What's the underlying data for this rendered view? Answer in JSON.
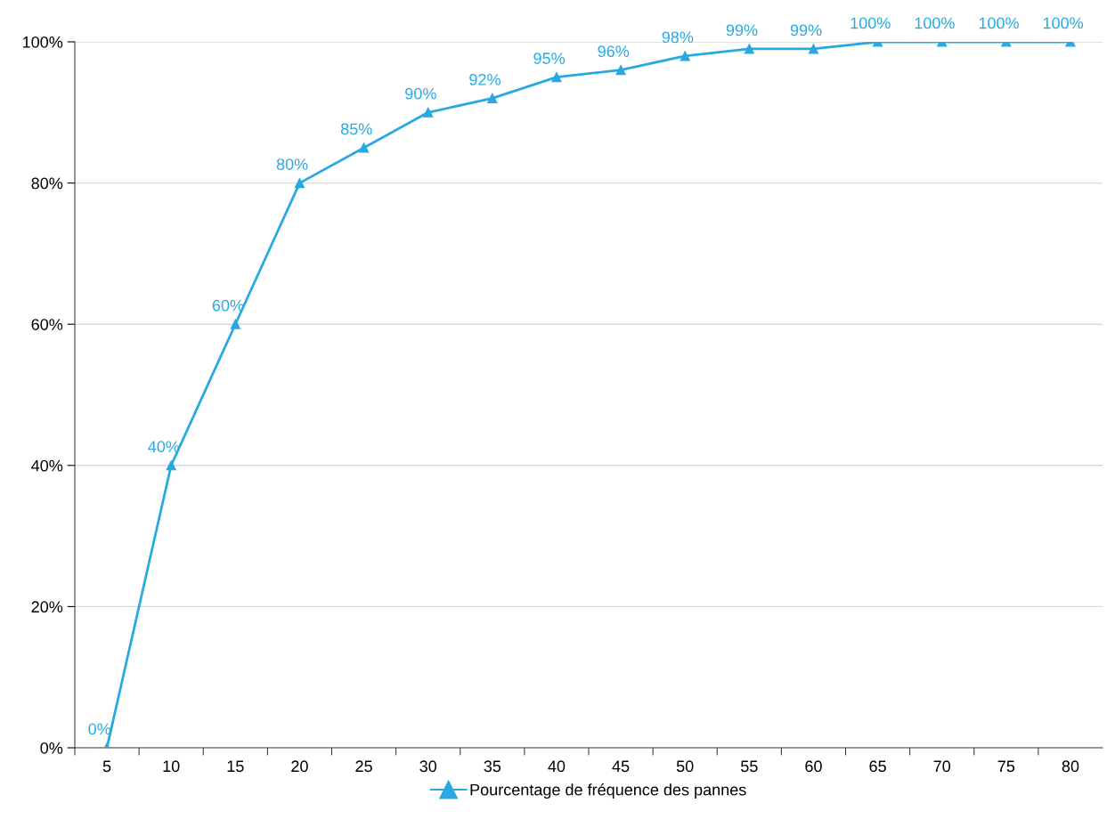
{
  "chart_data": {
    "type": "line",
    "categories": [
      "5",
      "10",
      "15",
      "20",
      "25",
      "30",
      "35",
      "40",
      "45",
      "50",
      "55",
      "60",
      "65",
      "70",
      "75",
      "80"
    ],
    "series": [
      {
        "name": "Pourcentage de fréquence des pannes",
        "color": "#29a9e0",
        "values": [
          0,
          40,
          60,
          80,
          85,
          90,
          92,
          95,
          96,
          98,
          99,
          99,
          100,
          100,
          100,
          100
        ],
        "value_labels": [
          "0%",
          "40%",
          "60%",
          "80%",
          "85%",
          "90%",
          "92%",
          "95%",
          "96%",
          "98%",
          "99%",
          "99%",
          "100%",
          "100%",
          "100%",
          "100%"
        ]
      }
    ],
    "ylim": [
      0,
      100
    ],
    "yticks": [
      {
        "value": 0,
        "label": "0%"
      },
      {
        "value": 20,
        "label": "20%"
      },
      {
        "value": 40,
        "label": "40%"
      },
      {
        "value": 60,
        "label": "60%"
      },
      {
        "value": 80,
        "label": "80%"
      },
      {
        "value": 100,
        "label": "100%"
      }
    ],
    "grid": "y",
    "legend": "bottom",
    "marker": "triangle",
    "line_style": "solid"
  }
}
